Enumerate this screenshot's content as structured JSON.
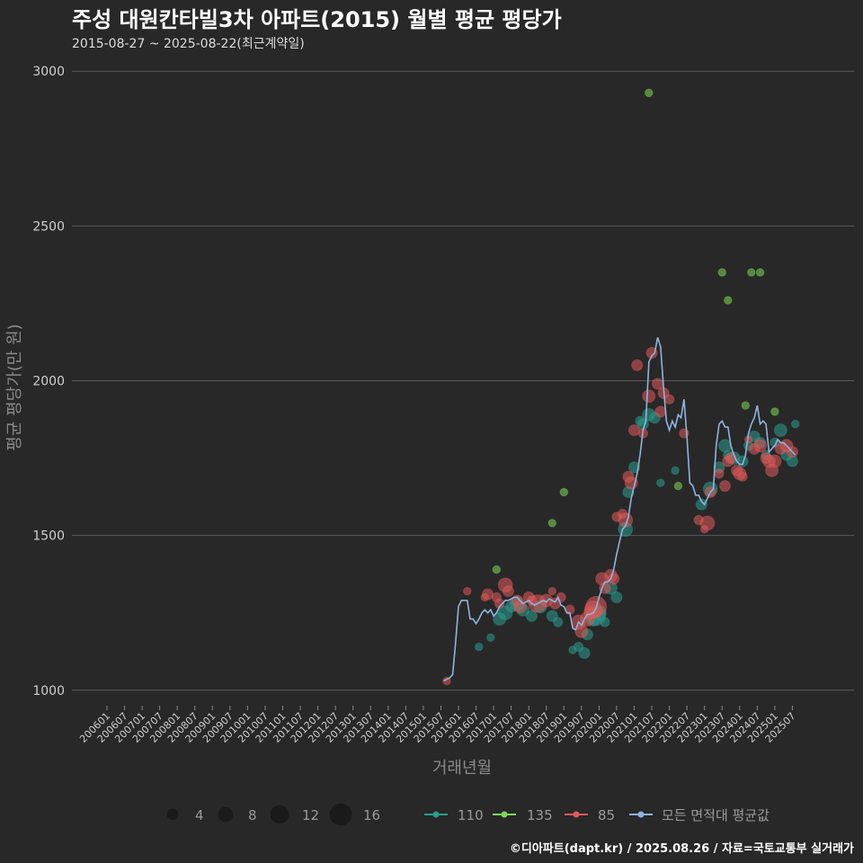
{
  "chart_data": {
    "type": "scatter",
    "title": "주성 대원칸타빌3차 아파트(2015) 월별 평균 평당가",
    "subtitle": "2015-08-27 ~ 2025-08-22(최근계약일)",
    "xlabel": "거래년월",
    "ylabel": "평균 평당가(만 원)",
    "caption": "©디아파트(dapt.kr) / 2025.08.26 / 자료=국토교통부 실거래가",
    "ylim": [
      950,
      3050
    ],
    "yticks": [
      1000,
      1500,
      2000,
      2500,
      3000
    ],
    "xrange_months": [
      "2006-01",
      "2025-10"
    ],
    "xtick_labels": [
      "200601",
      "200607",
      "200701",
      "200707",
      "200801",
      "200807",
      "200901",
      "200907",
      "201001",
      "201007",
      "201101",
      "201107",
      "201201",
      "201207",
      "201301",
      "201307",
      "201401",
      "201407",
      "201501",
      "201507",
      "201601",
      "201607",
      "201701",
      "201707",
      "201801",
      "201807",
      "201901",
      "201907",
      "202001",
      "202007",
      "202101",
      "202107",
      "202201",
      "202207",
      "202301",
      "202307",
      "202401",
      "202407",
      "202501",
      "202507"
    ],
    "size_legend": {
      "sizes": [
        4,
        8,
        12,
        16
      ],
      "labels": [
        "4",
        "8",
        "12",
        "16"
      ]
    },
    "color_legend": [
      {
        "name": "110",
        "color": "#2a9d8f"
      },
      {
        "name": "135",
        "color": "#7ed957"
      },
      {
        "name": "85",
        "color": "#e05a5a"
      },
      {
        "name": "모든 면적대 평균값",
        "color": "#8fb4e0"
      }
    ],
    "series": [
      {
        "name": "모든 면적대 평균값",
        "type": "line",
        "color": "#8fb4e0",
        "points": [
          [
            "2015-08",
            1030
          ],
          [
            "2015-09",
            1035
          ],
          [
            "2015-10",
            1040
          ],
          [
            "2015-11",
            1050
          ],
          [
            "2015-12",
            1150
          ],
          [
            "2016-01",
            1270
          ],
          [
            "2016-02",
            1290
          ],
          [
            "2016-03",
            1290
          ],
          [
            "2016-04",
            1290
          ],
          [
            "2016-05",
            1230
          ],
          [
            "2016-06",
            1230
          ],
          [
            "2016-07",
            1215
          ],
          [
            "2016-08",
            1230
          ],
          [
            "2016-09",
            1250
          ],
          [
            "2016-10",
            1260
          ],
          [
            "2016-11",
            1250
          ],
          [
            "2016-12",
            1260
          ],
          [
            "2017-01",
            1240
          ],
          [
            "2017-02",
            1250
          ],
          [
            "2017-03",
            1270
          ],
          [
            "2017-04",
            1280
          ],
          [
            "2017-05",
            1290
          ],
          [
            "2017-06",
            1290
          ],
          [
            "2017-07",
            1295
          ],
          [
            "2017-08",
            1300
          ],
          [
            "2017-09",
            1300
          ],
          [
            "2017-10",
            1290
          ],
          [
            "2017-11",
            1280
          ],
          [
            "2017-12",
            1285
          ],
          [
            "2018-01",
            1290
          ],
          [
            "2018-02",
            1280
          ],
          [
            "2018-03",
            1275
          ],
          [
            "2018-04",
            1280
          ],
          [
            "2018-05",
            1285
          ],
          [
            "2018-06",
            1290
          ],
          [
            "2018-07",
            1285
          ],
          [
            "2018-08",
            1295
          ],
          [
            "2018-09",
            1290
          ],
          [
            "2018-10",
            1285
          ],
          [
            "2018-11",
            1300
          ],
          [
            "2018-12",
            1275
          ],
          [
            "2019-01",
            1270
          ],
          [
            "2019-02",
            1250
          ],
          [
            "2019-03",
            1250
          ],
          [
            "2019-04",
            1200
          ],
          [
            "2019-05",
            1195
          ],
          [
            "2019-06",
            1220
          ],
          [
            "2019-07",
            1210
          ],
          [
            "2019-08",
            1230
          ],
          [
            "2019-09",
            1245
          ],
          [
            "2019-10",
            1245
          ],
          [
            "2019-11",
            1250
          ],
          [
            "2019-12",
            1265
          ],
          [
            "2020-01",
            1300
          ],
          [
            "2020-02",
            1330
          ],
          [
            "2020-03",
            1350
          ],
          [
            "2020-04",
            1350
          ],
          [
            "2020-05",
            1360
          ],
          [
            "2020-06",
            1390
          ],
          [
            "2020-07",
            1440
          ],
          [
            "2020-08",
            1480
          ],
          [
            "2020-09",
            1520
          ],
          [
            "2020-10",
            1530
          ],
          [
            "2020-11",
            1560
          ],
          [
            "2020-12",
            1620
          ],
          [
            "2021-01",
            1660
          ],
          [
            "2021-02",
            1700
          ],
          [
            "2021-03",
            1760
          ],
          [
            "2021-04",
            1840
          ],
          [
            "2021-05",
            1870
          ],
          [
            "2021-06",
            2060
          ],
          [
            "2021-07",
            2080
          ],
          [
            "2021-08",
            2090
          ],
          [
            "2021-09",
            2140
          ],
          [
            "2021-10",
            2110
          ],
          [
            "2021-11",
            1980
          ],
          [
            "2021-12",
            1870
          ],
          [
            "2022-01",
            1840
          ],
          [
            "2022-02",
            1870
          ],
          [
            "2022-03",
            1850
          ],
          [
            "2022-04",
            1890
          ],
          [
            "2022-05",
            1880
          ],
          [
            "2022-06",
            1940
          ],
          [
            "2022-07",
            1820
          ],
          [
            "2022-08",
            1670
          ],
          [
            "2022-09",
            1660
          ],
          [
            "2022-10",
            1630
          ],
          [
            "2022-11",
            1630
          ],
          [
            "2022-12",
            1610
          ],
          [
            "2023-01",
            1600
          ],
          [
            "2023-02",
            1620
          ],
          [
            "2023-03",
            1640
          ],
          [
            "2023-04",
            1650
          ],
          [
            "2023-05",
            1790
          ],
          [
            "2023-06",
            1860
          ],
          [
            "2023-07",
            1870
          ],
          [
            "2023-08",
            1850
          ],
          [
            "2023-09",
            1850
          ],
          [
            "2023-10",
            1790
          ],
          [
            "2023-11",
            1760
          ],
          [
            "2023-12",
            1740
          ],
          [
            "2024-01",
            1730
          ],
          [
            "2024-02",
            1730
          ],
          [
            "2024-03",
            1760
          ],
          [
            "2024-04",
            1830
          ],
          [
            "2024-05",
            1860
          ],
          [
            "2024-06",
            1880
          ],
          [
            "2024-07",
            1920
          ],
          [
            "2024-08",
            1860
          ],
          [
            "2024-09",
            1870
          ],
          [
            "2024-10",
            1860
          ],
          [
            "2024-11",
            1770
          ],
          [
            "2024-12",
            1780
          ],
          [
            "2025-01",
            1790
          ],
          [
            "2025-02",
            1810
          ],
          [
            "2025-03",
            1800
          ],
          [
            "2025-04",
            1800
          ],
          [
            "2025-05",
            1790
          ],
          [
            "2025-06",
            1780
          ],
          [
            "2025-07",
            1770
          ],
          [
            "2025-08",
            1760
          ]
        ]
      },
      {
        "name": "85",
        "type": "scatter",
        "color": "#e05a5a",
        "points": [
          [
            "2015-09",
            1030,
            2
          ],
          [
            "2016-04",
            1320,
            2
          ],
          [
            "2016-10",
            1300,
            2
          ],
          [
            "2016-11",
            1310,
            4
          ],
          [
            "2017-02",
            1300,
            3
          ],
          [
            "2017-03",
            1280,
            3
          ],
          [
            "2017-05",
            1340,
            6
          ],
          [
            "2017-06",
            1320,
            4
          ],
          [
            "2017-09",
            1290,
            4
          ],
          [
            "2017-10",
            1270,
            5
          ],
          [
            "2018-01",
            1300,
            4
          ],
          [
            "2018-02",
            1290,
            3
          ],
          [
            "2018-04",
            1280,
            8
          ],
          [
            "2018-07",
            1290,
            5
          ],
          [
            "2018-09",
            1320,
            2
          ],
          [
            "2018-10",
            1280,
            4
          ],
          [
            "2018-12",
            1300,
            3
          ],
          [
            "2019-03",
            1260,
            3
          ],
          [
            "2019-06",
            1220,
            6
          ],
          [
            "2019-07",
            1190,
            5
          ],
          [
            "2019-09",
            1230,
            6
          ],
          [
            "2019-10",
            1250,
            5
          ],
          [
            "2019-11",
            1260,
            8
          ],
          [
            "2019-12",
            1270,
            10
          ],
          [
            "2020-02",
            1360,
            5
          ],
          [
            "2020-03",
            1330,
            4
          ],
          [
            "2020-05",
            1370,
            5
          ],
          [
            "2020-06",
            1360,
            4
          ],
          [
            "2020-07",
            1560,
            3
          ],
          [
            "2020-09",
            1570,
            3
          ],
          [
            "2020-10",
            1550,
            6
          ],
          [
            "2020-11",
            1690,
            4
          ],
          [
            "2020-12",
            1670,
            5
          ],
          [
            "2021-01",
            1840,
            4
          ],
          [
            "2021-02",
            2050,
            4
          ],
          [
            "2021-04",
            1830,
            3
          ],
          [
            "2021-06",
            1950,
            5
          ],
          [
            "2021-07",
            2090,
            4
          ],
          [
            "2021-09",
            1990,
            4
          ],
          [
            "2021-10",
            1900,
            4
          ],
          [
            "2021-11",
            1960,
            4
          ],
          [
            "2022-01",
            1940,
            3
          ],
          [
            "2022-06",
            1830,
            3
          ],
          [
            "2022-11",
            1550,
            3
          ],
          [
            "2023-01",
            1520,
            2
          ],
          [
            "2023-02",
            1540,
            6
          ],
          [
            "2023-03",
            1640,
            4
          ],
          [
            "2023-06",
            1700,
            3
          ],
          [
            "2023-08",
            1660,
            4
          ],
          [
            "2023-09",
            1740,
            4
          ],
          [
            "2023-10",
            1750,
            4
          ],
          [
            "2023-12",
            1710,
            4
          ],
          [
            "2024-01",
            1700,
            5
          ],
          [
            "2024-02",
            1690,
            3
          ],
          [
            "2024-04",
            1810,
            2
          ],
          [
            "2024-06",
            1780,
            4
          ],
          [
            "2024-08",
            1790,
            5
          ],
          [
            "2024-10",
            1750,
            4
          ],
          [
            "2024-11",
            1740,
            5
          ],
          [
            "2024-12",
            1710,
            5
          ],
          [
            "2025-01",
            1740,
            5
          ],
          [
            "2025-03",
            1780,
            4
          ],
          [
            "2025-05",
            1790,
            5
          ],
          [
            "2025-07",
            1770,
            4
          ]
        ]
      },
      {
        "name": "110",
        "type": "scatter",
        "color": "#2a9d8f",
        "points": [
          [
            "2016-08",
            1140,
            2
          ],
          [
            "2016-12",
            1170,
            2
          ],
          [
            "2017-03",
            1230,
            5
          ],
          [
            "2017-05",
            1250,
            6
          ],
          [
            "2017-07",
            1270,
            4
          ],
          [
            "2017-09",
            1280,
            6
          ],
          [
            "2017-11",
            1260,
            5
          ],
          [
            "2018-02",
            1240,
            4
          ],
          [
            "2018-05",
            1270,
            5
          ],
          [
            "2018-09",
            1240,
            4
          ],
          [
            "2018-11",
            1220,
            3
          ],
          [
            "2019-04",
            1130,
            2
          ],
          [
            "2019-06",
            1140,
            3
          ],
          [
            "2019-08",
            1120,
            4
          ],
          [
            "2019-09",
            1180,
            4
          ],
          [
            "2019-11",
            1230,
            6
          ],
          [
            "2019-12",
            1240,
            9
          ],
          [
            "2020-01",
            1250,
            6
          ],
          [
            "2020-03",
            1220,
            3
          ],
          [
            "2020-05",
            1330,
            5
          ],
          [
            "2020-07",
            1300,
            4
          ],
          [
            "2020-10",
            1520,
            6
          ],
          [
            "2020-11",
            1640,
            4
          ],
          [
            "2021-01",
            1720,
            4
          ],
          [
            "2021-03",
            1870,
            3
          ],
          [
            "2021-04",
            1860,
            4
          ],
          [
            "2021-06",
            1890,
            5
          ],
          [
            "2021-08",
            1880,
            4
          ],
          [
            "2021-10",
            1670,
            2
          ],
          [
            "2022-03",
            1710,
            2
          ],
          [
            "2022-12",
            1600,
            4
          ],
          [
            "2023-03",
            1650,
            6
          ],
          [
            "2023-06",
            1720,
            4
          ],
          [
            "2023-08",
            1790,
            5
          ],
          [
            "2023-09",
            1760,
            3
          ],
          [
            "2023-11",
            1750,
            5
          ],
          [
            "2024-02",
            1740,
            4
          ],
          [
            "2024-04",
            1790,
            3
          ],
          [
            "2024-06",
            1820,
            4
          ],
          [
            "2024-08",
            1800,
            4
          ],
          [
            "2024-10",
            1760,
            3
          ],
          [
            "2025-01",
            1800,
            3
          ],
          [
            "2025-03",
            1840,
            5
          ],
          [
            "2025-05",
            1760,
            4
          ],
          [
            "2025-07",
            1740,
            4
          ],
          [
            "2025-08",
            1860,
            2
          ]
        ]
      },
      {
        "name": "135",
        "type": "scatter",
        "color": "#7ed957",
        "points": [
          [
            "2017-02",
            1390,
            2
          ],
          [
            "2018-09",
            1540,
            2
          ],
          [
            "2019-01",
            1640,
            2
          ],
          [
            "2021-06",
            2930,
            2
          ],
          [
            "2022-04",
            1660,
            2
          ],
          [
            "2023-07",
            2350,
            2
          ],
          [
            "2023-09",
            2260,
            2
          ],
          [
            "2024-05",
            2350,
            2
          ],
          [
            "2024-08",
            2350,
            2
          ],
          [
            "2024-03",
            1920,
            2
          ],
          [
            "2025-01",
            1900,
            2
          ]
        ]
      }
    ]
  }
}
